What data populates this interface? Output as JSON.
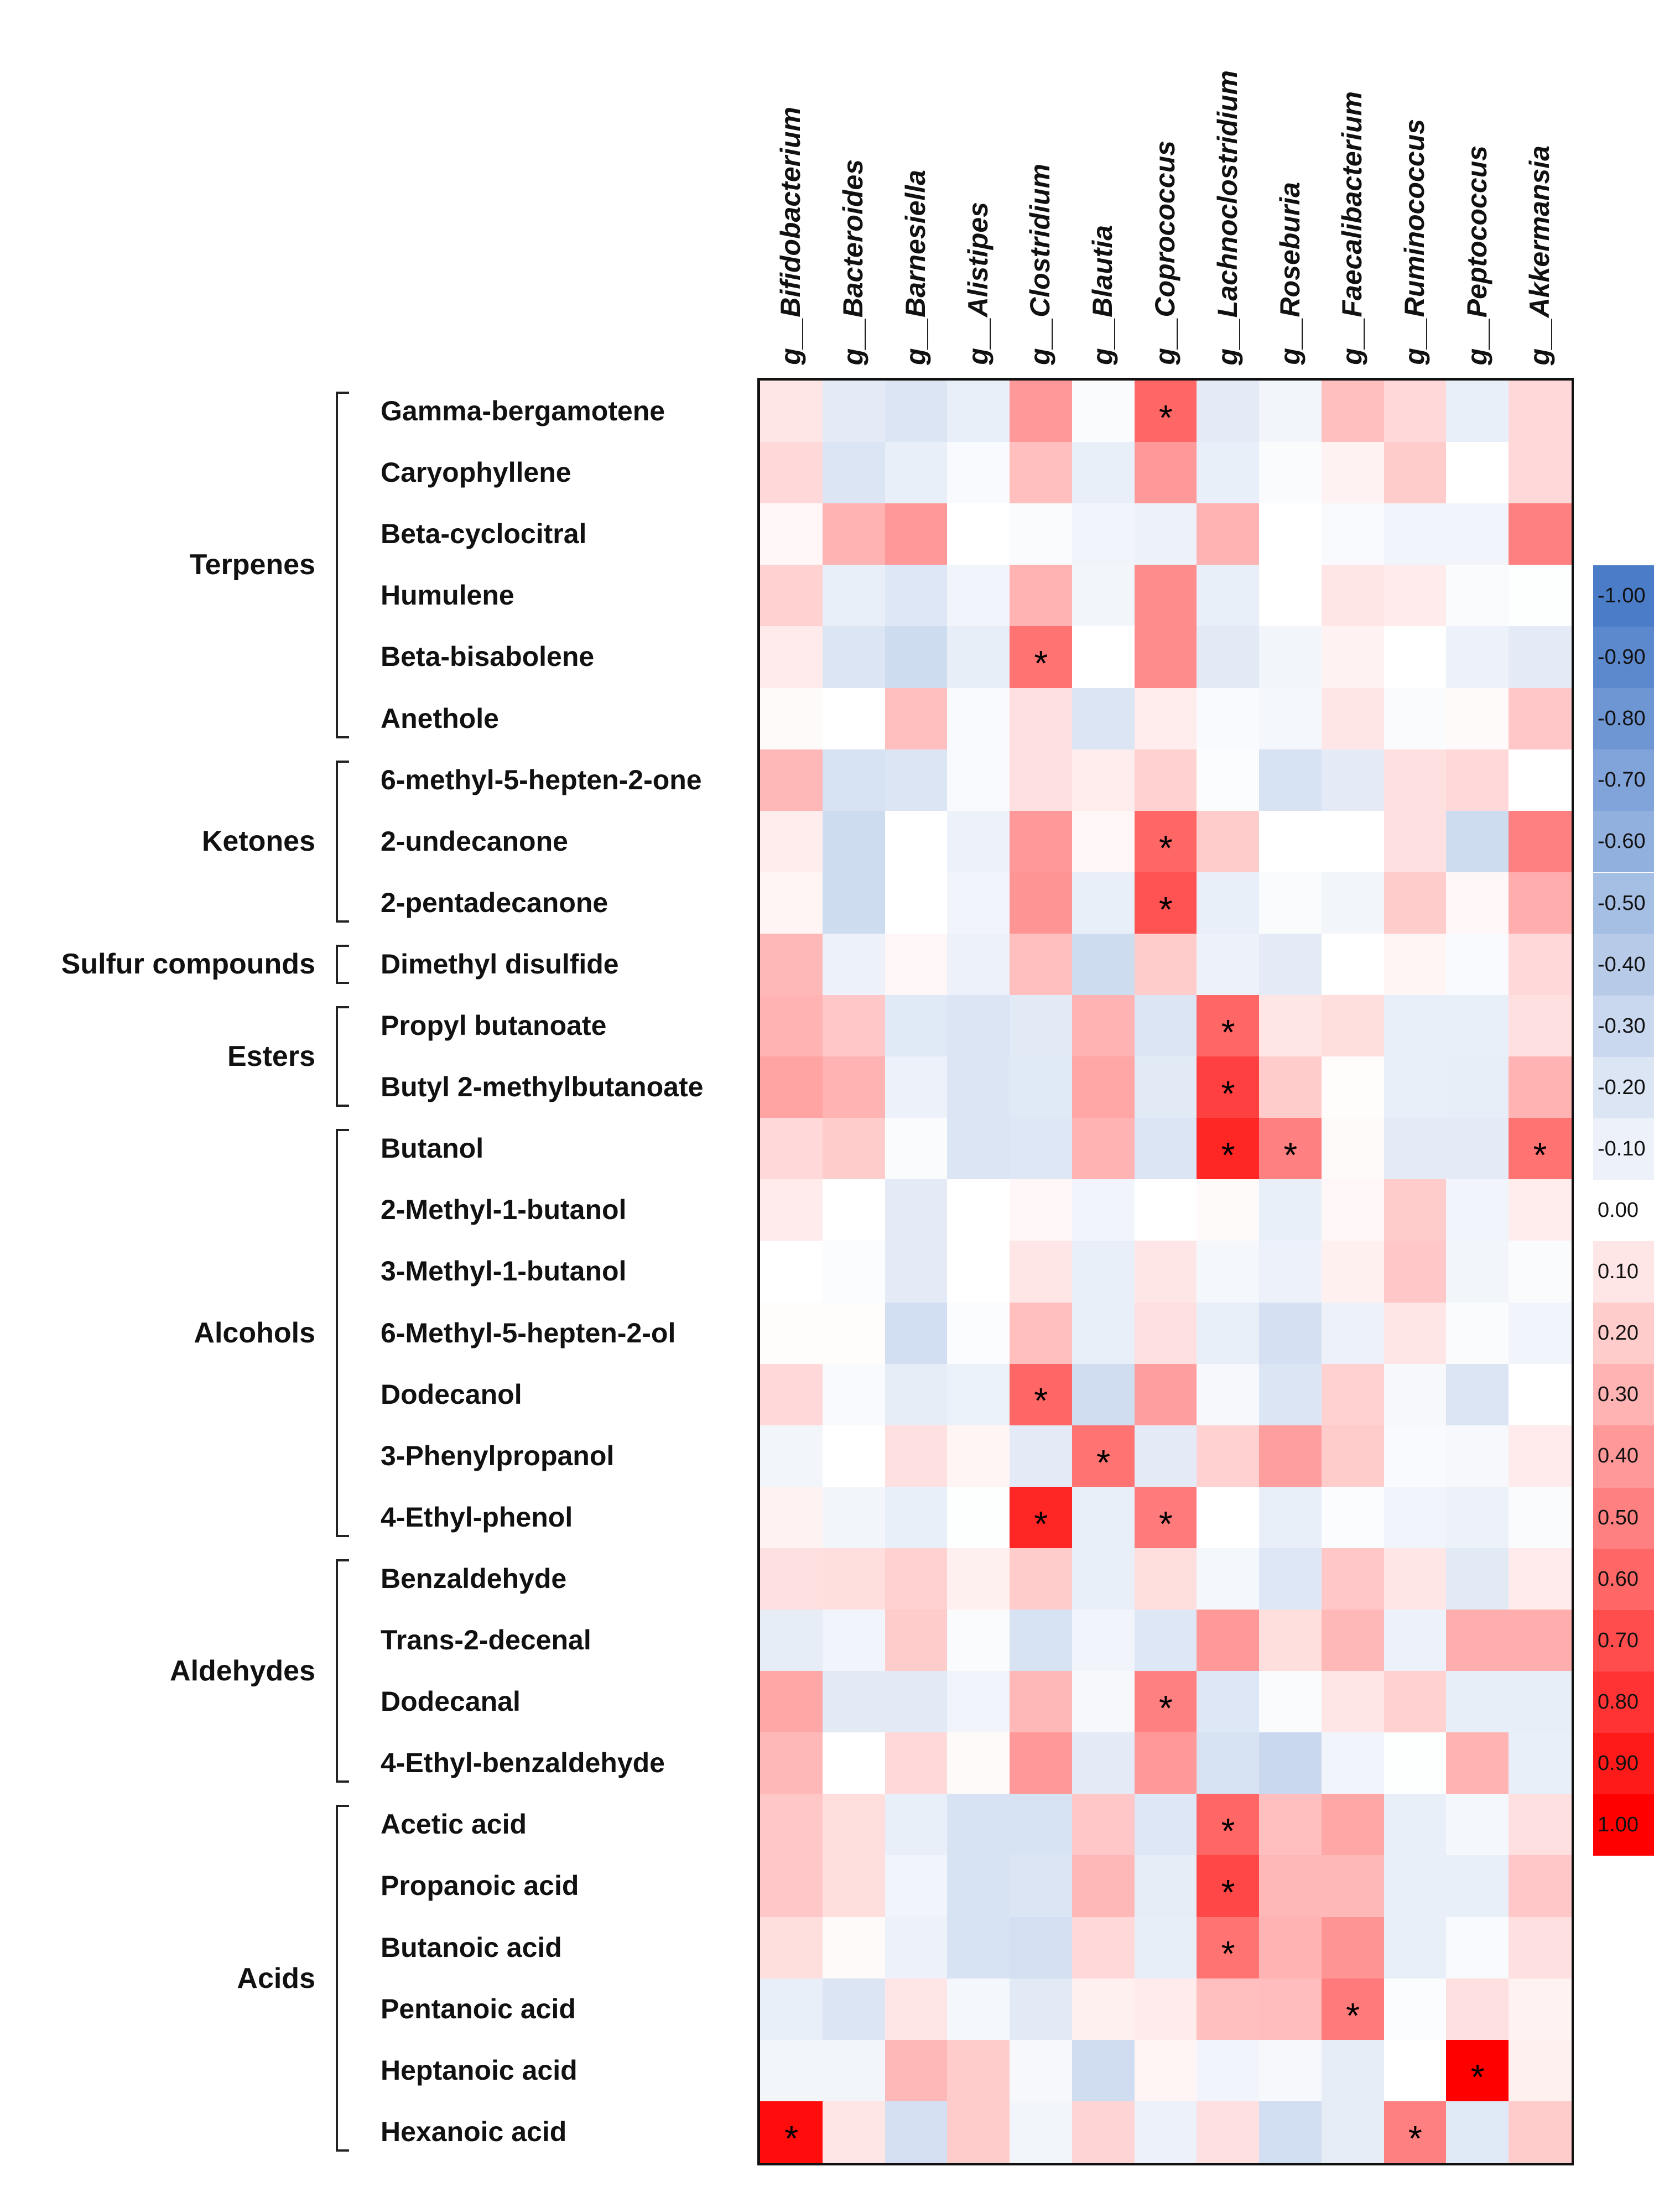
{
  "chart_data": {
    "type": "heatmap",
    "columns": [
      "g__Bifidobacterium",
      "g__Bacteroides",
      "g__Barnesiella",
      "g__Alistipes",
      "g__Clostridium",
      "g__Blautia",
      "g__Coprococcus",
      "g__Lachnoclostridium",
      "g__Roseburia",
      "g__Faecalibacterium",
      "g__Ruminococcus",
      "g__Peptococcus",
      "g__Akkermansia"
    ],
    "rows": [
      "Gamma-bergamotene",
      "Caryophyllene",
      "Beta-cyclocitral",
      "Humulene",
      "Beta-bisabolene",
      "Anethole",
      "6-methyl-5-hepten-2-one",
      "2-undecanone",
      "2-pentadecanone",
      "Dimethyl disulfide",
      "Propyl butanoate",
      "Butyl 2-methylbutanoate",
      "Butanol",
      "2-Methyl-1-butanol",
      "3-Methyl-1-butanol",
      "6-Methyl-5-hepten-2-ol",
      "Dodecanol",
      "3-Phenylpropanol",
      "4-Ethyl-phenol",
      "Benzaldehyde",
      "Trans-2-decenal",
      "Dodecanal",
      "4-Ethyl-benzaldehyde",
      "Acetic acid",
      "Propanoic acid",
      "Butanoic acid",
      "Pentanoic acid",
      "Heptanoic acid",
      "Hexanoic acid"
    ],
    "groups": [
      {
        "label": "Terpenes",
        "first": 0,
        "last": 5
      },
      {
        "label": "Ketones",
        "first": 6,
        "last": 8
      },
      {
        "label": "Sulfur compounds",
        "first": 9,
        "last": 9
      },
      {
        "label": "Esters",
        "first": 10,
        "last": 11
      },
      {
        "label": "Alcohols",
        "first": 12,
        "last": 18
      },
      {
        "label": "Aldehydes",
        "first": 19,
        "last": 22
      },
      {
        "label": "Acids",
        "first": 23,
        "last": 28
      }
    ],
    "values": [
      [
        0.1,
        -0.15,
        -0.2,
        -0.12,
        0.4,
        -0.03,
        0.6,
        -0.15,
        -0.07,
        0.25,
        0.15,
        -0.12,
        0.15
      ],
      [
        0.15,
        -0.2,
        -0.12,
        -0.04,
        0.25,
        -0.12,
        0.4,
        -0.12,
        -0.03,
        0.05,
        0.2,
        0,
        0.15
      ],
      [
        0.03,
        0.3,
        0.4,
        0,
        -0.03,
        -0.08,
        -0.1,
        0.3,
        0,
        -0.04,
        -0.08,
        -0.08,
        0.5
      ],
      [
        0.18,
        -0.12,
        -0.18,
        -0.08,
        0.3,
        -0.07,
        0.45,
        -0.12,
        0,
        0.1,
        0.08,
        -0.03,
        -0.01
      ],
      [
        0.08,
        -0.2,
        -0.27,
        -0.13,
        0.55,
        0,
        0.45,
        -0.16,
        -0.07,
        0.05,
        0,
        -0.1,
        -0.15
      ],
      [
        0.02,
        0,
        0.25,
        -0.04,
        0.12,
        -0.2,
        0.07,
        -0.04,
        -0.06,
        0.1,
        -0.03,
        0.02,
        0.22
      ],
      [
        0.28,
        -0.22,
        -0.2,
        -0.04,
        0.12,
        0.07,
        0.18,
        -0.02,
        -0.22,
        -0.15,
        0.12,
        0.15,
        0
      ],
      [
        0.07,
        -0.27,
        0,
        -0.1,
        0.4,
        0.03,
        0.6,
        0.2,
        0,
        0,
        0.12,
        -0.27,
        0.5
      ],
      [
        0.04,
        -0.27,
        0,
        -0.08,
        0.42,
        -0.12,
        0.68,
        -0.12,
        -0.03,
        -0.07,
        0.2,
        0.03,
        0.32
      ],
      [
        0.28,
        -0.1,
        0.03,
        -0.1,
        0.25,
        -0.27,
        0.2,
        -0.1,
        -0.15,
        0,
        0.04,
        -0.04,
        0.15
      ],
      [
        0.3,
        0.22,
        -0.17,
        -0.2,
        -0.16,
        0.3,
        -0.2,
        0.6,
        0.1,
        0.13,
        -0.12,
        -0.12,
        0.12
      ],
      [
        0.36,
        0.3,
        -0.1,
        -0.2,
        -0.17,
        0.35,
        -0.16,
        0.75,
        0.2,
        0.01,
        -0.12,
        -0.13,
        0.3
      ],
      [
        0.15,
        0.2,
        -0.03,
        -0.2,
        -0.18,
        0.3,
        -0.2,
        0.85,
        0.5,
        0.02,
        -0.15,
        -0.15,
        0.55
      ],
      [
        0.08,
        0,
        -0.15,
        0,
        0.03,
        -0.08,
        0,
        0.02,
        -0.12,
        0.03,
        0.2,
        -0.08,
        0.07
      ],
      [
        0,
        -0.02,
        -0.15,
        0,
        0.1,
        -0.12,
        0.1,
        -0.06,
        -0.1,
        0.06,
        0.22,
        -0.07,
        -0.03
      ],
      [
        0.01,
        0.01,
        -0.25,
        -0.02,
        0.25,
        -0.12,
        0.12,
        -0.12,
        -0.23,
        -0.1,
        0.1,
        -0.03,
        -0.08
      ],
      [
        0.15,
        -0.04,
        -0.14,
        -0.11,
        0.6,
        -0.26,
        0.38,
        -0.05,
        -0.2,
        0.18,
        -0.05,
        -0.2,
        0
      ],
      [
        -0.07,
        0,
        0.12,
        0.04,
        -0.15,
        0.55,
        -0.15,
        0.18,
        0.38,
        0.2,
        -0.04,
        -0.05,
        0.08
      ],
      [
        0.05,
        -0.07,
        -0.12,
        -0.01,
        0.85,
        -0.12,
        0.52,
        0,
        -0.12,
        -0.02,
        -0.08,
        -0.1,
        -0.03
      ],
      [
        0.12,
        0.13,
        0.18,
        0.06,
        0.2,
        -0.12,
        0.13,
        -0.06,
        -0.18,
        0.22,
        0.1,
        -0.16,
        0.08
      ],
      [
        -0.14,
        -0.08,
        0.2,
        -0.03,
        -0.22,
        -0.08,
        -0.18,
        0.4,
        0.13,
        0.28,
        -0.1,
        0.32,
        0.32
      ],
      [
        0.35,
        -0.16,
        -0.16,
        -0.08,
        0.28,
        -0.05,
        0.5,
        -0.18,
        -0.03,
        0.1,
        0.18,
        -0.13,
        -0.13
      ],
      [
        0.28,
        0,
        0.15,
        0.02,
        0.4,
        -0.15,
        0.4,
        -0.22,
        -0.3,
        -0.08,
        -0.01,
        0.3,
        -0.12
      ],
      [
        0.22,
        0.13,
        -0.12,
        -0.22,
        -0.22,
        0.22,
        -0.18,
        0.6,
        0.25,
        0.35,
        -0.12,
        -0.06,
        0.12
      ],
      [
        0.22,
        0.13,
        -0.08,
        -0.22,
        -0.2,
        0.28,
        -0.14,
        0.72,
        0.28,
        0.28,
        -0.12,
        -0.12,
        0.22
      ],
      [
        0.13,
        0.02,
        -0.1,
        -0.22,
        -0.24,
        0.15,
        -0.13,
        0.55,
        0.3,
        0.42,
        -0.12,
        -0.04,
        0.12
      ],
      [
        -0.12,
        -0.2,
        0.1,
        -0.06,
        -0.16,
        0.06,
        0.08,
        0.25,
        0.26,
        0.52,
        -0.02,
        0.12,
        0.05
      ],
      [
        -0.07,
        -0.07,
        0.28,
        0.2,
        -0.05,
        -0.26,
        0.04,
        -0.08,
        -0.05,
        -0.14,
        0,
        1.0,
        0.06
      ],
      [
        0.95,
        0.1,
        -0.24,
        0.2,
        -0.07,
        0.17,
        -0.1,
        0.12,
        -0.25,
        -0.14,
        0.5,
        -0.17,
        0.2
      ]
    ],
    "significant": [
      [
        0,
        6
      ],
      [
        4,
        4
      ],
      [
        7,
        6
      ],
      [
        8,
        6
      ],
      [
        10,
        7
      ],
      [
        11,
        7
      ],
      [
        12,
        7
      ],
      [
        12,
        8
      ],
      [
        12,
        12
      ],
      [
        16,
        4
      ],
      [
        17,
        5
      ],
      [
        18,
        4
      ],
      [
        18,
        6
      ],
      [
        21,
        6
      ],
      [
        23,
        7
      ],
      [
        24,
        7
      ],
      [
        25,
        7
      ],
      [
        26,
        9
      ],
      [
        27,
        11
      ],
      [
        28,
        0
      ],
      [
        28,
        10
      ]
    ],
    "significance_marker": "*",
    "colorbar": {
      "ticks": [
        "-1.00",
        "-0.90",
        "-0.80",
        "-0.70",
        "-0.60",
        "-0.50",
        "-0.40",
        "-0.30",
        "-0.20",
        "-0.10",
        "0.00",
        "0.10",
        "0.20",
        "0.30",
        "0.40",
        "0.50",
        "0.60",
        "0.70",
        "0.80",
        "0.90",
        "1.00"
      ],
      "range": [
        -1,
        1
      ],
      "placement": "right"
    },
    "colors": {
      "negative": "#4a7cc8",
      "zero": "#ffffff",
      "positive": "#ff0000"
    }
  }
}
